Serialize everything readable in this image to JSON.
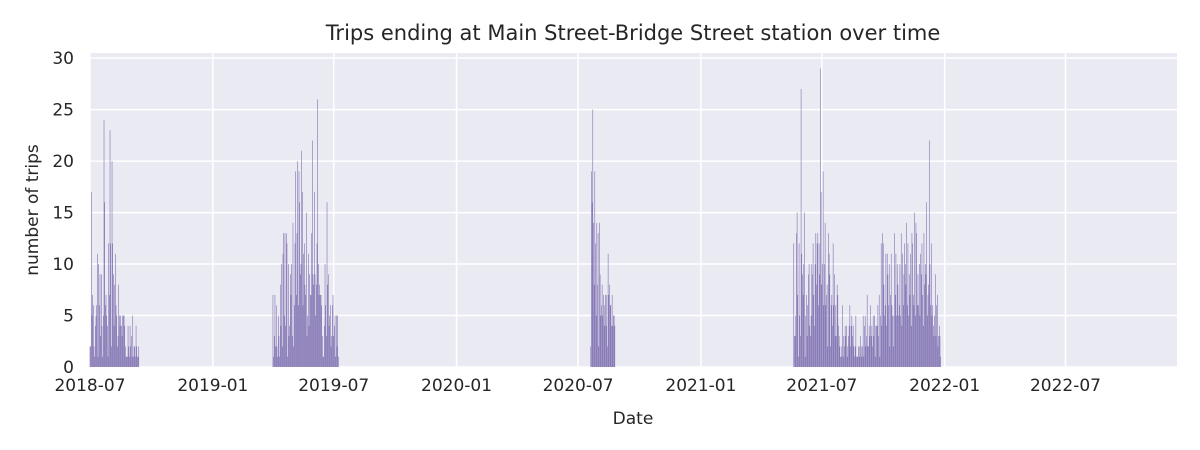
{
  "chart_data": {
    "type": "bar",
    "title": "Trips ending at Main Street-Bridge Street station over time",
    "xlabel": "Date",
    "ylabel": "number of trips",
    "xlim": [
      "2018-07-01",
      "2022-12-15"
    ],
    "ylim": [
      0,
      30.5
    ],
    "yticks": [
      0,
      5,
      10,
      15,
      20,
      25,
      30
    ],
    "xticks": [
      {
        "date": "2018-07-01",
        "label": "2018-07"
      },
      {
        "date": "2019-01-01",
        "label": "2019-01"
      },
      {
        "date": "2019-07-01",
        "label": "2019-07"
      },
      {
        "date": "2020-01-01",
        "label": "2020-01"
      },
      {
        "date": "2020-07-01",
        "label": "2020-07"
      },
      {
        "date": "2021-01-01",
        "label": "2021-01"
      },
      {
        "date": "2021-07-01",
        "label": "2021-07"
      },
      {
        "date": "2022-01-01",
        "label": "2022-01"
      },
      {
        "date": "2022-07-01",
        "label": "2022-07"
      }
    ],
    "bar_color": "#8172b2",
    "background": "#eaeaf2",
    "grid": true,
    "periods": [
      {
        "start": "2018-07-01",
        "values": [
          2,
          2,
          17,
          5,
          7,
          6,
          2,
          1,
          4,
          5,
          6,
          11,
          1,
          10,
          6,
          9,
          3,
          9,
          4,
          1,
          5,
          24,
          16,
          6,
          7,
          5,
          4,
          1,
          12,
          7,
          23,
          12,
          2,
          20,
          12,
          9,
          4,
          8,
          11,
          6,
          5,
          2,
          3,
          8,
          5,
          4,
          5,
          4,
          3,
          5,
          5,
          5,
          4,
          2,
          1,
          1,
          1,
          4,
          2,
          1,
          4,
          2,
          3,
          1,
          5,
          1,
          2,
          2,
          1,
          4,
          2,
          1,
          1,
          2
        ]
      },
      {
        "start": "2019-04-01",
        "values": [
          7,
          1,
          3,
          7,
          2,
          6,
          2,
          1,
          5,
          3,
          1,
          8,
          4,
          10,
          2,
          11,
          13,
          5,
          13,
          4,
          13,
          12,
          1,
          10,
          3,
          4,
          9,
          7,
          10,
          3,
          14,
          2,
          6,
          12,
          19,
          7,
          13,
          20,
          6,
          19,
          16,
          9,
          10,
          21,
          17,
          6,
          11,
          12,
          8,
          7,
          15,
          3,
          5,
          11,
          4,
          9,
          7,
          7,
          13,
          22,
          9,
          8,
          17,
          9,
          5,
          8,
          12,
          26,
          10,
          7,
          8,
          7,
          7,
          6,
          3,
          1,
          1,
          4,
          10,
          6,
          3,
          16,
          8,
          9,
          4,
          5,
          6,
          2,
          3,
          6,
          7,
          3,
          4,
          5,
          1,
          5,
          2,
          5,
          1
        ]
      },
      {
        "start": "2020-07-20",
        "values": [
          2,
          19,
          16,
          25,
          14,
          8,
          19,
          12,
          5,
          14,
          8,
          13,
          2,
          14,
          9,
          5,
          6,
          8,
          5,
          7,
          4,
          6,
          7,
          4,
          7,
          2,
          11,
          7,
          8,
          6,
          6,
          4,
          7,
          4,
          5,
          5,
          4
        ]
      },
      {
        "start": "2021-05-20",
        "values": [
          12,
          3,
          3,
          5,
          13,
          15,
          7,
          1,
          12,
          5,
          3,
          27,
          11,
          9,
          7,
          10,
          15,
          1,
          5,
          7,
          3,
          6,
          9,
          10,
          4,
          3,
          5,
          10,
          9,
          12,
          7,
          4,
          10,
          13,
          8,
          12,
          13,
          6,
          12,
          9,
          29,
          17,
          8,
          10,
          19,
          6,
          10,
          14,
          6,
          7,
          8,
          2,
          13,
          11,
          9,
          2,
          6,
          7,
          4,
          12,
          6,
          9,
          3,
          6,
          3,
          8,
          7,
          4,
          3,
          2,
          1,
          1,
          2,
          6,
          1,
          3,
          2,
          4,
          3,
          4,
          1,
          2,
          3,
          4,
          6,
          2,
          4,
          5,
          3,
          4,
          2,
          1,
          2,
          5,
          1,
          1,
          1,
          2,
          2,
          1,
          3,
          2,
          1,
          2,
          5,
          1,
          4,
          5,
          2,
          3,
          7,
          2,
          2,
          4,
          3,
          6,
          3,
          4,
          2,
          5,
          3,
          5,
          1,
          4,
          4,
          4,
          6,
          3,
          7,
          1,
          5,
          12,
          4,
          13,
          12,
          8,
          5,
          6,
          11,
          4,
          11,
          9,
          6,
          10,
          2,
          7,
          11,
          6,
          5,
          2,
          5,
          13,
          7,
          11,
          5,
          10,
          8,
          5,
          6,
          10,
          5,
          13,
          4,
          11,
          6,
          9,
          12,
          10,
          8,
          14,
          6,
          12,
          5,
          9,
          7,
          11,
          4,
          13,
          12,
          7,
          6,
          15,
          5,
          14,
          13,
          6,
          9,
          6,
          10,
          5,
          11,
          9,
          12,
          7,
          4,
          13,
          8,
          10,
          9,
          16,
          5,
          7,
          8,
          22,
          10,
          6,
          12,
          5,
          6,
          4,
          3,
          5,
          9,
          3,
          6,
          7,
          2,
          3,
          4,
          3,
          1
        ]
      }
    ]
  }
}
